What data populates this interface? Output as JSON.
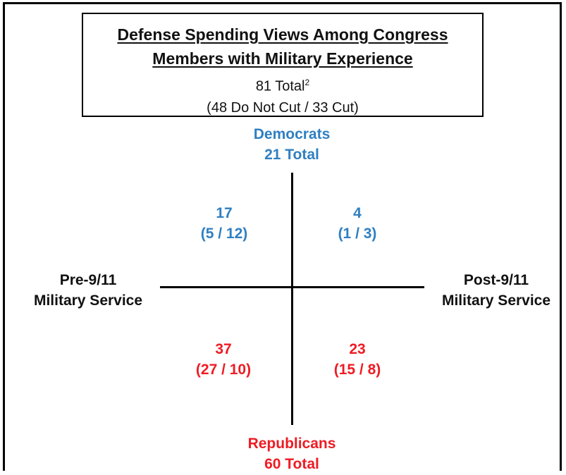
{
  "title": {
    "line1": "Defense Spending Views Among Congress",
    "line2": "Members with Military Experience",
    "total_text": "81 Total",
    "total_sup": "2",
    "breakdown": "(48 Do Not Cut / 33 Cut)"
  },
  "axes": {
    "top": {
      "line1": "Democrats",
      "line2": "21 Total"
    },
    "bottom": {
      "line1": "Republicans",
      "line2": "60 Total"
    },
    "left": {
      "line1": "Pre-9/11",
      "line2": "Military Service"
    },
    "right": {
      "line1": "Post-9/11",
      "line2": "Military Service"
    }
  },
  "quadrants": {
    "top_left": {
      "total": "17",
      "split": "(5 / 12)"
    },
    "top_right": {
      "total": "4",
      "split": "(1 / 3)"
    },
    "bottom_left": {
      "total": "37",
      "split": "(27 / 10)"
    },
    "bottom_right": {
      "total": "23",
      "split": "(15 / 8)"
    }
  },
  "colors": {
    "democrat": "#2f7fc1",
    "republican": "#ee1c24",
    "axis": "#000000"
  }
}
